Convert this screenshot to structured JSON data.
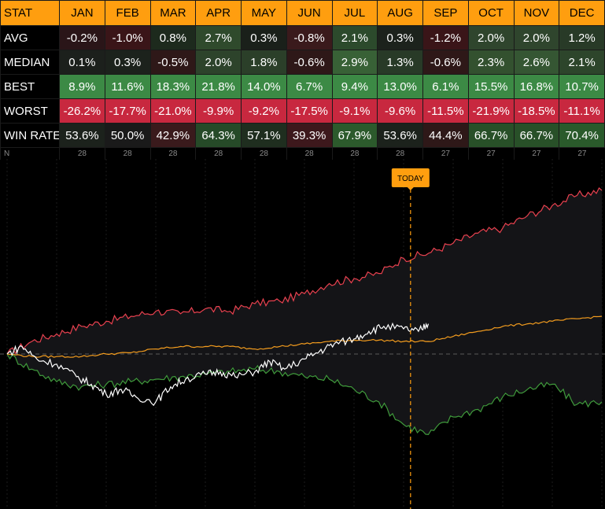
{
  "table": {
    "header_label": "STAT",
    "months": [
      "JAN",
      "FEB",
      "MAR",
      "APR",
      "MAY",
      "JUN",
      "JUL",
      "AUG",
      "SEP",
      "OCT",
      "NOV",
      "DEC"
    ],
    "rows": [
      {
        "label": "AVG",
        "values": [
          "-0.2%",
          "-1.0%",
          "0.8%",
          "2.7%",
          "0.3%",
          "-0.8%",
          "2.1%",
          "0.3%",
          "-1.2%",
          "2.0%",
          "2.0%",
          "1.2%"
        ],
        "colors": [
          "#2a1518",
          "#3a1518",
          "#1d2a1d",
          "#2f4a2c",
          "#1a201a",
          "#3a1a1c",
          "#2c4a2c",
          "#1c221c",
          "#3a1518",
          "#2f452d",
          "#2f452d",
          "#283a27"
        ]
      },
      {
        "label": "MEDIAN",
        "values": [
          "0.1%",
          "0.3%",
          "-0.5%",
          "2.0%",
          "1.8%",
          "-0.6%",
          "2.9%",
          "1.3%",
          "-0.6%",
          "2.3%",
          "2.6%",
          "2.1%"
        ],
        "colors": [
          "#1c201c",
          "#1c221c",
          "#2e1818",
          "#2d432b",
          "#2b3f29",
          "#2e1818",
          "#386136",
          "#283a27",
          "#2e1818",
          "#33512f",
          "#355633",
          "#2d452b"
        ]
      },
      {
        "label": "BEST",
        "values": [
          "8.9%",
          "11.6%",
          "18.3%",
          "21.8%",
          "14.0%",
          "6.7%",
          "9.4%",
          "13.0%",
          "6.1%",
          "15.5%",
          "16.8%",
          "10.7%"
        ],
        "colors": [
          "#3c8a45",
          "#3c8a45",
          "#3c8a45",
          "#3c8a45",
          "#3c8a45",
          "#3c8a45",
          "#3c8a45",
          "#3c8a45",
          "#3c8a45",
          "#3c8a45",
          "#3c8a45",
          "#3c8a45"
        ]
      },
      {
        "label": "WORST",
        "values": [
          "-26.2%",
          "-17.7%",
          "-21.0%",
          "-9.9%",
          "-9.2%",
          "-17.5%",
          "-9.1%",
          "-9.6%",
          "-11.5%",
          "-21.9%",
          "-18.5%",
          "-11.1%"
        ],
        "colors": [
          "#c8283f",
          "#c8283f",
          "#c8283f",
          "#c8283f",
          "#c8283f",
          "#c8283f",
          "#c8283f",
          "#c8283f",
          "#c8283f",
          "#c8283f",
          "#c8283f",
          "#c8283f"
        ]
      },
      {
        "label": "WIN RATE",
        "values": [
          "53.6%",
          "50.0%",
          "42.9%",
          "64.3%",
          "57.1%",
          "39.3%",
          "67.9%",
          "53.6%",
          "44.4%",
          "66.7%",
          "66.7%",
          "70.4%"
        ],
        "colors": [
          "#1c221c",
          "#1a1a1a",
          "#3a1a1c",
          "#264a28",
          "#1f2e1f",
          "#3d181c",
          "#2c5a2c",
          "#1c221c",
          "#2e1818",
          "#285028",
          "#285028",
          "#2a5a2b"
        ]
      }
    ],
    "n_label": "N",
    "n_values": [
      "28",
      "28",
      "28",
      "28",
      "28",
      "28",
      "28",
      "28",
      "27",
      "27",
      "27",
      "27"
    ]
  },
  "chart": {
    "today_label": "TODAY",
    "colors": {
      "best": "#e8414f",
      "worst": "#3f9a3b",
      "average": "#f39c1e",
      "current": "#ffffff",
      "today": "#ff9e0f"
    }
  },
  "chart_data": {
    "type": "line",
    "x_categories": [
      "JAN",
      "FEB",
      "MAR",
      "APR",
      "MAY",
      "JUN",
      "JUL",
      "AUG",
      "SEP",
      "OCT",
      "NOV",
      "DEC"
    ],
    "today_position": "AUG",
    "series": [
      {
        "key": "best",
        "points": [
          [
            0,
            0
          ],
          [
            0.5,
            5
          ],
          [
            1,
            8
          ],
          [
            1.5,
            11
          ],
          [
            2,
            13
          ],
          [
            2.5,
            15
          ],
          [
            3,
            17
          ],
          [
            3.5,
            16
          ],
          [
            4,
            18
          ],
          [
            4.5,
            17
          ],
          [
            5,
            20
          ],
          [
            5.5,
            21
          ],
          [
            6,
            24
          ],
          [
            6.5,
            28
          ],
          [
            7,
            30
          ],
          [
            7.5,
            32
          ],
          [
            8,
            38
          ],
          [
            8.5,
            40
          ],
          [
            9,
            44
          ],
          [
            9.5,
            48
          ],
          [
            10,
            50
          ],
          [
            10.5,
            55
          ],
          [
            11,
            59
          ],
          [
            11.5,
            63
          ],
          [
            12,
            65
          ]
        ]
      },
      {
        "key": "worst",
        "points": [
          [
            0,
            0
          ],
          [
            0.5,
            -6
          ],
          [
            1,
            -11
          ],
          [
            1.5,
            -13
          ],
          [
            2,
            -12
          ],
          [
            2.5,
            -11
          ],
          [
            3,
            -10
          ],
          [
            3.5,
            -9
          ],
          [
            4,
            -8
          ],
          [
            4.5,
            -7
          ],
          [
            5,
            -6
          ],
          [
            5.5,
            -7
          ],
          [
            6,
            -9
          ],
          [
            6.5,
            -10
          ],
          [
            7,
            -14
          ],
          [
            7.5,
            -19
          ],
          [
            8,
            -28
          ],
          [
            8.5,
            -32
          ],
          [
            9,
            -25
          ],
          [
            9.5,
            -22
          ],
          [
            10,
            -17
          ],
          [
            10.5,
            -14
          ],
          [
            11,
            -12
          ],
          [
            11.5,
            -20
          ],
          [
            12,
            -19
          ]
        ]
      },
      {
        "key": "average",
        "points": [
          [
            0,
            0
          ],
          [
            0.5,
            -1
          ],
          [
            1,
            -1
          ],
          [
            1.5,
            -1
          ],
          [
            2,
            0
          ],
          [
            2.5,
            0.5
          ],
          [
            3,
            2
          ],
          [
            3.5,
            3
          ],
          [
            4,
            3
          ],
          [
            4.5,
            3
          ],
          [
            5,
            2
          ],
          [
            5.5,
            3
          ],
          [
            6,
            4
          ],
          [
            6.5,
            5
          ],
          [
            7,
            5.5
          ],
          [
            7.5,
            5.5
          ],
          [
            8,
            5
          ],
          [
            8.5,
            5
          ],
          [
            9,
            7
          ],
          [
            9.5,
            9
          ],
          [
            10,
            11
          ],
          [
            10.5,
            12
          ],
          [
            11,
            13
          ],
          [
            11.5,
            14
          ],
          [
            12,
            15
          ]
        ]
      },
      {
        "key": "current",
        "points": [
          [
            0,
            0
          ],
          [
            0.3,
            3
          ],
          [
            0.6,
            -2
          ],
          [
            1,
            -4
          ],
          [
            1.4,
            -9
          ],
          [
            1.7,
            -12
          ],
          [
            2,
            -16
          ],
          [
            2.3,
            -14
          ],
          [
            2.6,
            -17
          ],
          [
            3,
            -19
          ],
          [
            3.3,
            -13
          ],
          [
            3.6,
            -10
          ],
          [
            4,
            -8
          ],
          [
            4.3,
            -7
          ],
          [
            4.6,
            -9
          ],
          [
            5,
            -7
          ],
          [
            5.3,
            -3
          ],
          [
            5.6,
            -6
          ],
          [
            6,
            -2
          ],
          [
            6.3,
            1
          ],
          [
            6.6,
            4
          ],
          [
            7,
            6
          ],
          [
            7.3,
            9
          ],
          [
            7.6,
            11
          ],
          [
            8,
            10
          ],
          [
            8.3,
            9
          ],
          [
            8.5,
            12
          ]
        ]
      }
    ]
  }
}
